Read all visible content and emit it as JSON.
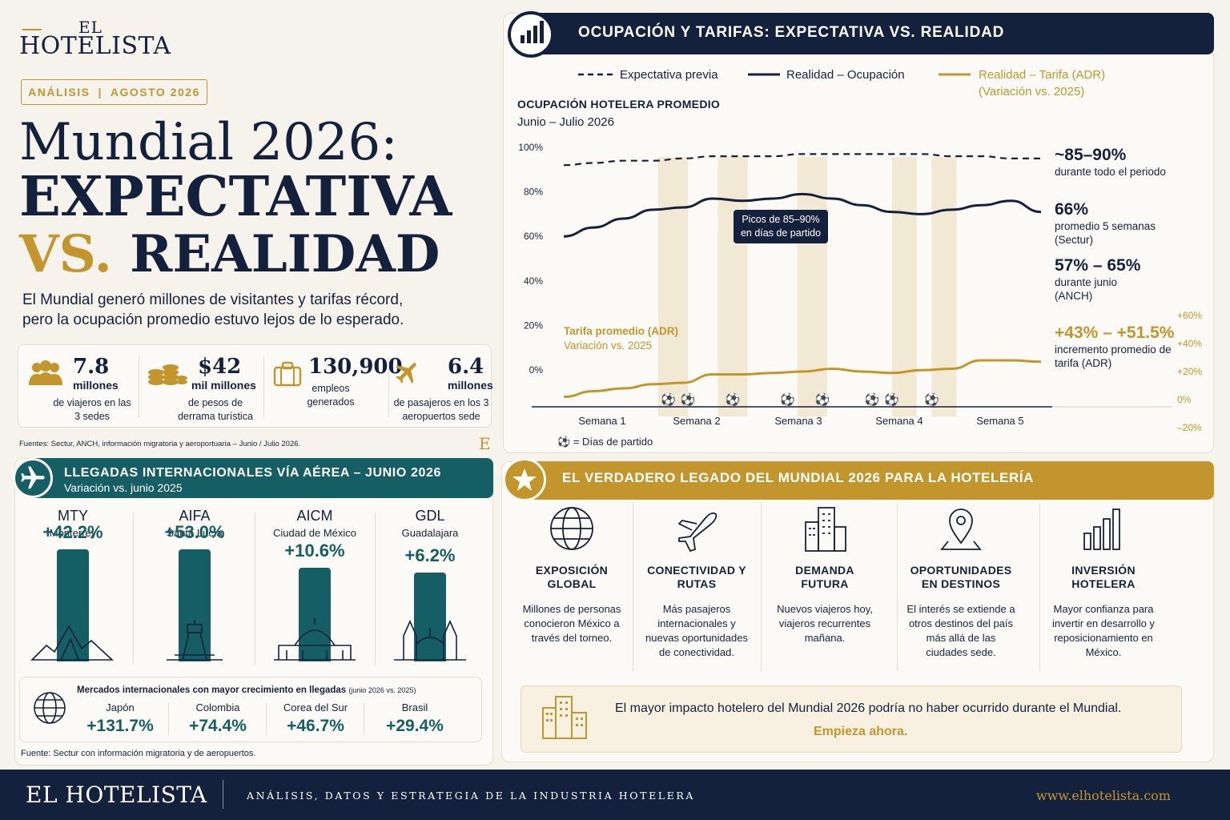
{
  "brand": {
    "top": "EL",
    "name": "HOTELISTA"
  },
  "tag": {
    "left": "ANÁLISIS",
    "sep": "|",
    "right": "AGOSTO 2026"
  },
  "headline": {
    "line1": "Mundial 2026:",
    "line2": "EXPECTATIVA",
    "line3a": "VS.",
    "line3b": "REALIDAD"
  },
  "intro": "El Mundial generó millones de visitantes y tarifas récord, pero la ocupación promedio estuvo lejos de lo esperado.",
  "stats": [
    {
      "icon": "people-icon",
      "num": "7.8",
      "unit": "millones",
      "desc": "de viajeros en las 3 sedes"
    },
    {
      "icon": "coins-icon",
      "num": "$42",
      "unit": "mil millones",
      "desc": "de pesos de derrama turística"
    },
    {
      "icon": "briefcase-icon",
      "num": "130,900",
      "unit": "",
      "desc": "empleos generados"
    },
    {
      "icon": "plane-icon",
      "num": "6.4",
      "unit": "millones",
      "desc": "de pasajeros en los 3 aeropuertos sede"
    }
  ],
  "fuentes_top": "Fuentes: Sectur, ANCH, información migratoria y aeroportuaria – Junio / Julio 2026.",
  "e_mark": "E",
  "arrivals": {
    "title": "LLEGADAS INTERNACIONALES VÍA AÉREA – JUNIO 2026",
    "subtitle": "Variación vs. junio 2025",
    "airports": [
      {
        "code": "MTY",
        "city": "Monterrey",
        "pct": "+42.2%",
        "value": 42.2,
        "icon": "mountains-icon"
      },
      {
        "code": "AIFA",
        "city": "Santa Lucía",
        "pct": "+53.0%",
        "value": 53.0,
        "icon": "control-tower-icon"
      },
      {
        "code": "AICM",
        "city": "Ciudad de México",
        "pct": "+10.6%",
        "value": 10.6,
        "icon": "palace-icon"
      },
      {
        "code": "GDL",
        "city": "Guadalajara",
        "pct": "+6.2%",
        "value": 6.2,
        "icon": "cathedral-icon"
      }
    ],
    "markets_title": "Mercados internacionales con mayor crecimiento en llegadas",
    "markets_note": "(junio 2026 vs. 2025)",
    "markets": [
      {
        "country": "Japón",
        "pct": "+131.7%"
      },
      {
        "country": "Colombia",
        "pct": "+74.4%"
      },
      {
        "country": "Corea del Sur",
        "pct": "+46.7%"
      },
      {
        "country": "Brasil",
        "pct": "+29.4%"
      }
    ],
    "source": "Fuente: Sectur con información migratoria y de aeropuertos."
  },
  "chart": {
    "header": "OCUPACIÓN Y TARIFAS: EXPECTATIVA VS. REALIDAD",
    "legend": {
      "expect": "Expectativa previa",
      "occ": "Realidad – Ocupación",
      "adr1": "Realidad – Tarifa (ADR)",
      "adr2": "(Variación vs. 2025)"
    },
    "title": "OCUPACIÓN HOTELERA PROMEDIO",
    "subtitle": "Junio – Julio 2026",
    "tooltip1": "Picos de 85–90%",
    "tooltip2": "en días de partido",
    "adr_label1": "Tarifa promedio (ADR)",
    "adr_label2": "Variación vs. 2025",
    "match_legend": "= Días de partido",
    "notes": [
      {
        "big": "~85–90%",
        "sm": "durante todo el periodo"
      },
      {
        "big": "66%",
        "sm": "promedio 5 semanas (Sectur)"
      },
      {
        "big": "57% – 65%",
        "sm": "durante junio (ANCH)"
      },
      {
        "big": "+43% – +51.5%",
        "sm": "incremento promedio de tarifa (ADR)"
      }
    ]
  },
  "chart_data": {
    "type": "line",
    "title": "OCUPACIÓN HOTELERA PROMEDIO",
    "categories": [
      "Semana 1",
      "Semana 2",
      "Semana 3",
      "Semana 4",
      "Semana 5"
    ],
    "y_left_ticks": [
      "100%",
      "80%",
      "60%",
      "40%",
      "20%",
      "0%"
    ],
    "y_right_ticks": [
      "+60%",
      "+40%",
      "+20%",
      "0%",
      "–20%"
    ],
    "ylim_left": [
      0,
      100
    ],
    "ylim_right": [
      -20,
      60
    ],
    "x": [
      0,
      0.3,
      0.6,
      0.9,
      1.2,
      1.5,
      1.8,
      2.1,
      2.4,
      2.7,
      3.0,
      3.3,
      3.6,
      3.9,
      4.2,
      4.5,
      4.8
    ],
    "series": [
      {
        "name": "Expectativa previa",
        "axis": "left",
        "style": "dashed",
        "values": [
          92,
          93,
          94,
          94,
          95,
          96,
          96,
          96,
          97,
          97,
          97,
          97,
          97,
          96,
          96,
          95,
          95
        ]
      },
      {
        "name": "Realidad – Ocupación",
        "axis": "left",
        "style": "solid",
        "values": [
          60,
          64,
          68,
          72,
          73,
          77,
          76,
          77,
          79,
          77,
          74,
          71,
          70,
          72,
          74,
          76,
          71
        ]
      },
      {
        "name": "Realidad – Tarifa (ADR)",
        "axis": "right",
        "style": "solid",
        "values": [
          2,
          6,
          8,
          11,
          12,
          18,
          18,
          19,
          20,
          22,
          20,
          19,
          21,
          22,
          28,
          28,
          27
        ]
      }
    ],
    "match_days": [
      1.05,
      1.25,
      1.7,
      2.25,
      2.6,
      3.1,
      3.3,
      3.7
    ],
    "highlight_bands": [
      [
        0.95,
        1.25
      ],
      [
        1.55,
        1.85
      ],
      [
        2.35,
        2.65
      ],
      [
        3.3,
        3.55
      ],
      [
        3.7,
        3.95
      ]
    ]
  },
  "legacy": {
    "title": "EL VERDADERO LEGADO DEL MUNDIAL 2026 PARA LA HOTELERÍA",
    "items": [
      {
        "icon": "globe-icon",
        "t": "EXPOSICIÓN GLOBAL",
        "d": "Millones de personas conocieron México a través del torneo."
      },
      {
        "icon": "airplane-icon",
        "t": "CONECTIVIDAD Y RUTAS",
        "d": "Más pasajeros internacionales y nuevas oportunidades de conectividad."
      },
      {
        "icon": "buildings-icon",
        "t": "DEMANDA FUTURA",
        "d": "Nuevos viajeros hoy, viajeros recurrentes mañana."
      },
      {
        "icon": "location-pin-icon",
        "t": "OPORTUNIDADES EN DESTINOS",
        "d": "El interés se extiende a otros destinos del país más allá de las ciudades sede."
      },
      {
        "icon": "bar-chart-icon",
        "t": "INVERSIÓN HOTELERA",
        "d": "Mayor confianza para invertir en desarrollo y reposicionamiento en México."
      }
    ],
    "cta_line": "El mayor impacto hotelero del Mundial 2026 podría no haber ocurrido durante el Mundial.",
    "cta_action": "Empieza ahora."
  },
  "footer": {
    "brand": "EL HOTELISTA",
    "tagline": "ANÁLISIS, DATOS Y ESTRATEGIA DE LA INDUSTRIA HOTELERA",
    "url": "www.elhotelista.com"
  },
  "colors": {
    "navy": "#14213d",
    "gold": "#c2962c",
    "teal": "#155e63",
    "cream": "#f6f3ec"
  }
}
